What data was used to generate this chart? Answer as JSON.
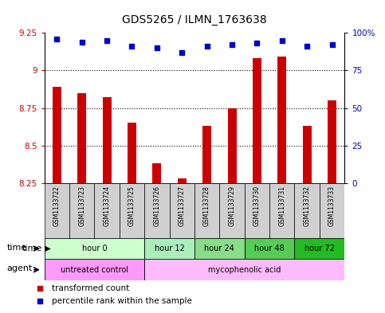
{
  "title": "GDS5265 / ILMN_1763638",
  "samples": [
    "GSM1133722",
    "GSM1133723",
    "GSM1133724",
    "GSM1133725",
    "GSM1133726",
    "GSM1133727",
    "GSM1133728",
    "GSM1133729",
    "GSM1133730",
    "GSM1133731",
    "GSM1133732",
    "GSM1133733"
  ],
  "bar_values": [
    8.89,
    8.85,
    8.82,
    8.65,
    8.38,
    8.28,
    8.63,
    8.75,
    9.08,
    9.09,
    8.63,
    8.8
  ],
  "dot_values": [
    96,
    94,
    95,
    91,
    90,
    87,
    91,
    92,
    93,
    95,
    91,
    92
  ],
  "ymin": 8.25,
  "ymax": 9.25,
  "yticks": [
    8.25,
    8.5,
    8.75,
    9.0,
    9.25
  ],
  "ytick_labels": [
    "8.25",
    "8.5",
    "8.75",
    "9",
    "9.25"
  ],
  "right_yticks": [
    0,
    25,
    50,
    75,
    100
  ],
  "right_ytick_labels": [
    "0",
    "25",
    "50",
    "75",
    "100%"
  ],
  "bar_color": "#cc0000",
  "dot_color": "#0000cc",
  "bar_baseline": 8.25,
  "time_groups": [
    {
      "label": "hour 0",
      "start": 0,
      "end": 3,
      "color": "#ccffcc"
    },
    {
      "label": "hour 12",
      "start": 4,
      "end": 5,
      "color": "#aaeebb"
    },
    {
      "label": "hour 24",
      "start": 6,
      "end": 7,
      "color": "#88dd88"
    },
    {
      "label": "hour 48",
      "start": 8,
      "end": 9,
      "color": "#55cc55"
    },
    {
      "label": "hour 72",
      "start": 10,
      "end": 11,
      "color": "#22bb22"
    }
  ],
  "agent_groups": [
    {
      "label": "untreated control",
      "start": 0,
      "end": 3,
      "color": "#ff99ff"
    },
    {
      "label": "mycophenolic acid",
      "start": 4,
      "end": 11,
      "color": "#ffbbff"
    }
  ],
  "legend_red": "transformed count",
  "legend_blue": "percentile rank within the sample",
  "bg_color": "#ffffff",
  "label_time": "time",
  "label_agent": "agent"
}
